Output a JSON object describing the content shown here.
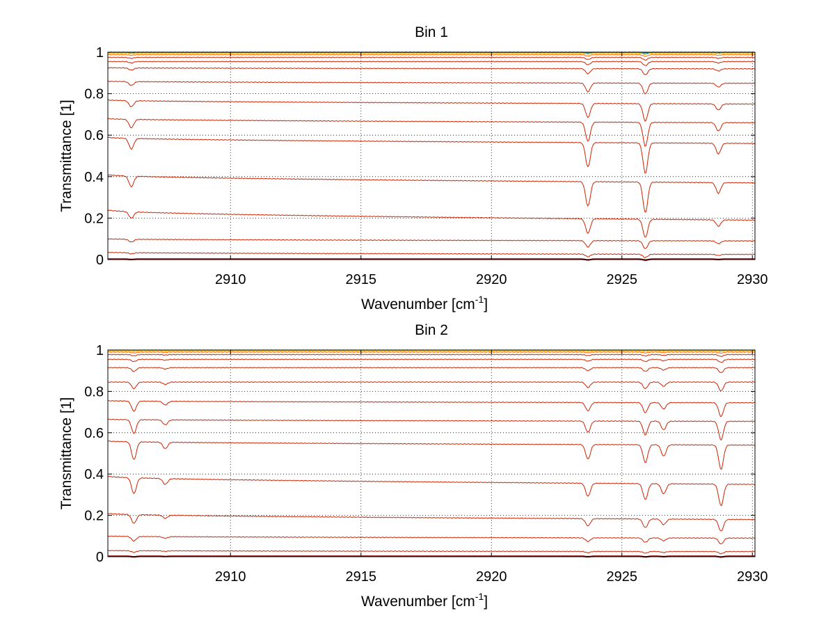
{
  "chart_data": [
    {
      "type": "line",
      "title": "Bin 1",
      "xlabel": "Wavenumber [cm",
      "xlabel_sup": "-1",
      "xlabel_end": "]",
      "ylabel": "Transmittance [1]",
      "xlim": [
        2905.3,
        2930.1
      ],
      "ylim": [
        0,
        1
      ],
      "x_ticks": [
        2910,
        2915,
        2920,
        2925,
        2930
      ],
      "y_ticks": [
        0,
        0.2,
        0.4,
        0.6,
        0.8,
        1
      ],
      "x_tick_labels": [
        "2910",
        "2915",
        "2920",
        "2925",
        "2930"
      ],
      "y_tick_labels": [
        "0",
        "0.2",
        "0.4",
        "0.6",
        "0.8",
        "1"
      ],
      "grid": true,
      "series_color": "#cc2200",
      "absorption_lines": [
        {
          "x": 2906.2,
          "strength": 0.35
        },
        {
          "x": 2923.7,
          "strength": 0.8
        },
        {
          "x": 2925.9,
          "strength": 1.0
        },
        {
          "x": 2928.7,
          "strength": 0.35
        }
      ],
      "series": [
        {
          "y_start": 0.002,
          "y_end": 0.002,
          "color": "#8b0000"
        },
        {
          "y_start": 0.035,
          "y_end": 0.025
        },
        {
          "y_start": 0.1,
          "y_end": 0.09
        },
        {
          "y_start": 0.24,
          "y_end": 0.19
        },
        {
          "y_start": 0.41,
          "y_end": 0.37
        },
        {
          "y_start": 0.59,
          "y_end": 0.56
        },
        {
          "y_start": 0.68,
          "y_end": 0.66
        },
        {
          "y_start": 0.77,
          "y_end": 0.75
        },
        {
          "y_start": 0.86,
          "y_end": 0.85
        },
        {
          "y_start": 0.925,
          "y_end": 0.92
        },
        {
          "y_start": 0.955,
          "y_end": 0.955
        },
        {
          "y_start": 0.975,
          "y_end": 0.975
        },
        {
          "y_start": 0.988,
          "y_end": 0.988,
          "color": "#ff6600"
        },
        {
          "y_start": 0.995,
          "y_end": 0.995,
          "color": "#ffaa00"
        },
        {
          "y_start": 0.998,
          "y_end": 0.998,
          "color": "#66cc66"
        },
        {
          "y_start": 1.0,
          "y_end": 1.0,
          "color": "#0066cc"
        }
      ]
    },
    {
      "type": "line",
      "title": "Bin 2",
      "xlabel": "Wavenumber [cm",
      "xlabel_sup": "-1",
      "xlabel_end": "]",
      "ylabel": "Transmittance [1]",
      "xlim": [
        2905.3,
        2930.1
      ],
      "ylim": [
        0,
        1
      ],
      "x_ticks": [
        2910,
        2915,
        2920,
        2925,
        2930
      ],
      "y_ticks": [
        0,
        0.2,
        0.4,
        0.6,
        0.8,
        1
      ],
      "x_tick_labels": [
        "2910",
        "2915",
        "2920",
        "2925",
        "2930"
      ],
      "y_tick_labels": [
        "0",
        "0.2",
        "0.4",
        "0.6",
        "0.8",
        "1"
      ],
      "grid": true,
      "series_color": "#cc2200",
      "absorption_lines": [
        {
          "x": 2906.3,
          "strength": 0.55
        },
        {
          "x": 2907.5,
          "strength": 0.2
        },
        {
          "x": 2923.7,
          "strength": 0.45
        },
        {
          "x": 2925.9,
          "strength": 0.55
        },
        {
          "x": 2926.6,
          "strength": 0.35
        },
        {
          "x": 2928.8,
          "strength": 0.75
        }
      ],
      "series": [
        {
          "y_start": 0.002,
          "y_end": 0.002,
          "color": "#8b0000"
        },
        {
          "y_start": 0.03,
          "y_end": 0.025
        },
        {
          "y_start": 0.1,
          "y_end": 0.09
        },
        {
          "y_start": 0.21,
          "y_end": 0.18
        },
        {
          "y_start": 0.39,
          "y_end": 0.35
        },
        {
          "y_start": 0.56,
          "y_end": 0.54
        },
        {
          "y_start": 0.665,
          "y_end": 0.655
        },
        {
          "y_start": 0.755,
          "y_end": 0.745
        },
        {
          "y_start": 0.845,
          "y_end": 0.845
        },
        {
          "y_start": 0.915,
          "y_end": 0.915
        },
        {
          "y_start": 0.955,
          "y_end": 0.955
        },
        {
          "y_start": 0.978,
          "y_end": 0.978
        },
        {
          "y_start": 0.99,
          "y_end": 0.99,
          "color": "#ff6600"
        },
        {
          "y_start": 0.996,
          "y_end": 0.996,
          "color": "#ffaa00"
        },
        {
          "y_start": 1.0,
          "y_end": 1.0,
          "color": "#66cc66"
        }
      ]
    }
  ]
}
